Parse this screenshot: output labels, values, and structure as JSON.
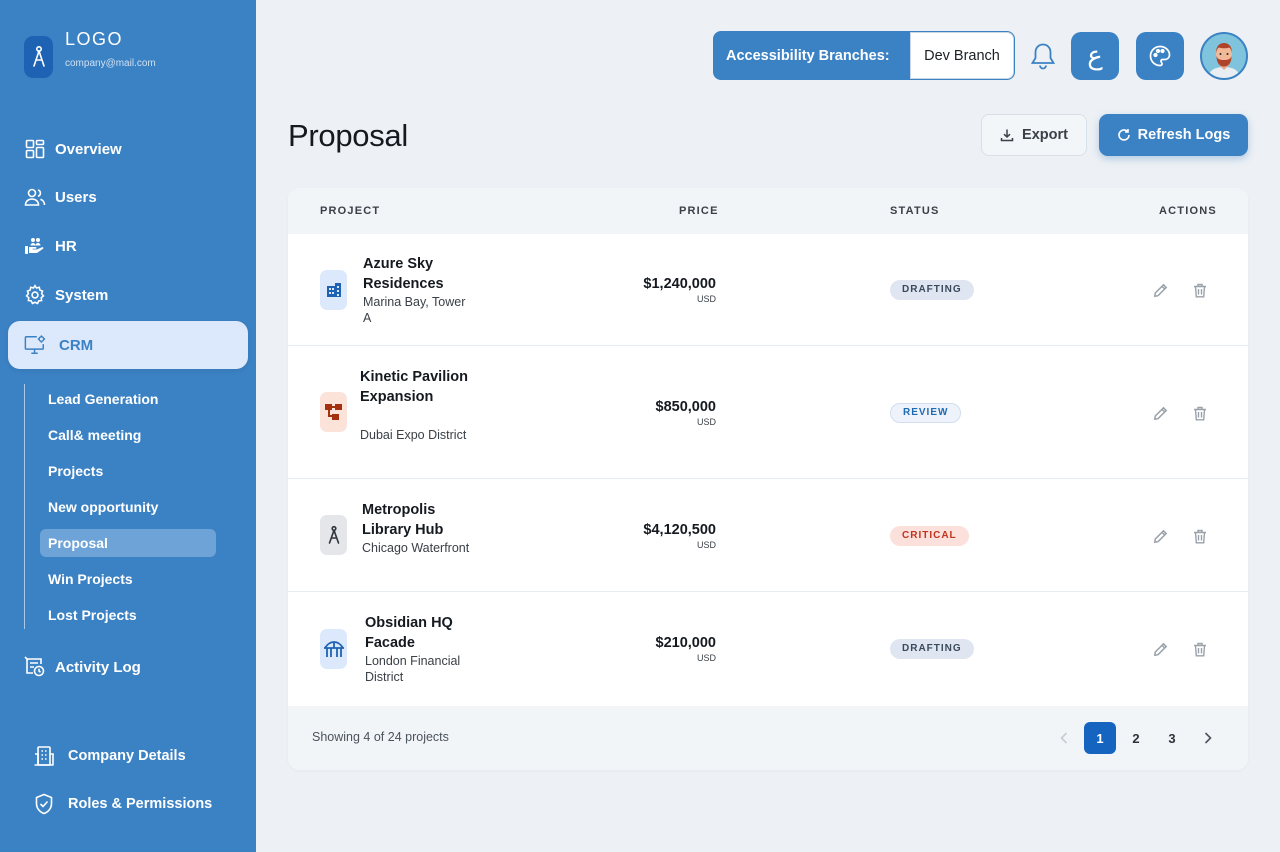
{
  "brand": {
    "name": "LOGO",
    "email": "company@mail.com"
  },
  "nav": {
    "overview": "Overview",
    "users": "Users",
    "hr": "HR",
    "system": "System",
    "crm": "CRM",
    "activity_log": "Activity Log",
    "company_details": "Company Details",
    "roles_permissions": "Roles & Permissions"
  },
  "crm_subnav": [
    "Lead Generation",
    "Call& meeting",
    "Projects",
    "New opportunity",
    "Proposal",
    "Win Projects",
    "Lost Projects"
  ],
  "header": {
    "branch_label": "Accessibility Branches:",
    "branch_value": "Dev Branch",
    "lang_label": "ع"
  },
  "page": {
    "title": "Proposal",
    "export_label": "Export",
    "refresh_label": "Refresh Logs"
  },
  "table": {
    "columns": [
      "PROJECT",
      "PRICE",
      "STATUS",
      "ACTIONS"
    ],
    "rows": [
      {
        "name": "Azure Sky Residences",
        "location": "Marina Bay, Tower A",
        "price": "$1,240,000",
        "currency": "USD",
        "status": "DRAFTING",
        "icon": "building-icon",
        "icon_bg": "#dce8fb",
        "icon_color": "#1e63b3"
      },
      {
        "name": "Kinetic Pavilion Expansion",
        "location": "Dubai Expo District",
        "price": "$850,000",
        "currency": "USD",
        "status": "REVIEW",
        "icon": "hierarchy-icon",
        "icon_bg": "#fbe3da",
        "icon_color": "#a3310f"
      },
      {
        "name": "Metropolis Library Hub",
        "location": "Chicago Waterfront",
        "price": "$4,120,500",
        "currency": "USD",
        "status": "CRITICAL",
        "icon": "compass-icon",
        "icon_bg": "#e4e6ea",
        "icon_color": "#2f353c"
      },
      {
        "name": "Obsidian HQ Facade",
        "location": "London Financial District",
        "price": "$210,000",
        "currency": "USD",
        "status": "DRAFTING",
        "icon": "bridge-icon",
        "icon_bg": "#dce8fb",
        "icon_color": "#1e63b3"
      }
    ],
    "footer_text": "Showing 4 of 24 projects",
    "pages": [
      "1",
      "2",
      "3"
    ],
    "current_page": "1"
  },
  "colors": {
    "primary": "#3b82c4",
    "active_page": "#1565c0",
    "background": "#edf1f5"
  }
}
